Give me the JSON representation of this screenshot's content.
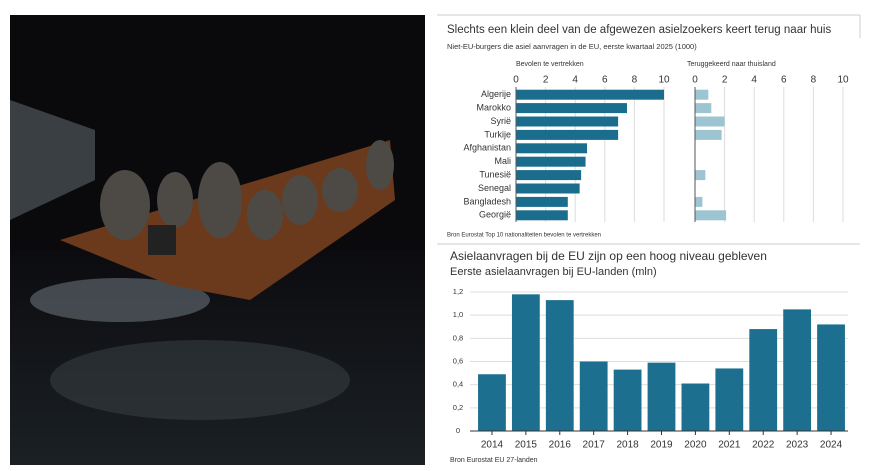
{
  "chart_data": [
    {
      "type": "bar",
      "orientation": "horizontal",
      "title": "Slechts een klein deel van de afgewezen asielzoekers keert terug naar huis",
      "subtitle": "Niet-EU-burgers die asiel aanvragen in de EU, eerste kwartaal 2025 (1000)",
      "categories": [
        "Algerije",
        "Marokko",
        "Syrië",
        "Turkije",
        "Afghanistan",
        "Mali",
        "Tunesië",
        "Senegal",
        "Bangladesh",
        "Georgië"
      ],
      "series": [
        {
          "name": "Bevolen te vertrekken",
          "color": "#1b6d8d",
          "values": [
            10.0,
            7.5,
            6.9,
            6.9,
            4.8,
            4.7,
            4.4,
            4.3,
            3.5,
            3.5
          ]
        },
        {
          "name": "Teruggekeerd naar thuisland",
          "color": "#9dc4d1",
          "values": [
            0.9,
            1.1,
            2.0,
            1.8,
            0,
            0,
            0.7,
            0,
            0.5,
            2.1
          ]
        }
      ],
      "xlim": [
        0,
        10
      ],
      "xticks": [
        0,
        2,
        4,
        6,
        8,
        10
      ],
      "grid": true,
      "source": "Bron Eurostat Top 10 nationaliteiten bevolen te vertrekken"
    },
    {
      "type": "bar",
      "title": "Asielaanvragen bij de EU zijn op een hoog niveau gebleven",
      "subtitle": "Eerste asielaanvragen bij EU-landen (mln)",
      "categories": [
        "2014",
        "2015",
        "2016",
        "2017",
        "2018",
        "2019",
        "2020",
        "2021",
        "2022",
        "2023",
        "2024"
      ],
      "values": [
        0.49,
        1.18,
        1.13,
        0.6,
        0.53,
        0.59,
        0.41,
        0.54,
        0.88,
        1.05,
        0.92
      ],
      "color": "#1d6f8f",
      "ylim": [
        0,
        1.2
      ],
      "yticks": [
        0,
        {
          "value": 0.2,
          "label": "0,2"
        },
        {
          "value": 0.4,
          "label": "0,4"
        },
        {
          "value": 0.6,
          "label": "0,6"
        },
        {
          "value": 0.8,
          "label": "0,8"
        },
        {
          "value": 1.0,
          "label": "1,0"
        },
        {
          "value": 1.2,
          "label": "1,2"
        }
      ],
      "grid": true,
      "source": "Bron Eurostat EU 27-landen"
    }
  ]
}
